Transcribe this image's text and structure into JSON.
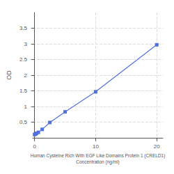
{
  "chart_data": {
    "type": "line",
    "x": [
      0,
      0.156,
      0.313,
      0.625,
      1.25,
      2.5,
      5,
      10,
      20
    ],
    "values": [
      0.105,
      0.118,
      0.143,
      0.175,
      0.27,
      0.49,
      0.83,
      1.47,
      2.97
    ],
    "xlabel": "Human Cysteine Rich With EGF Like Domains Protein 1 (CRELD1)\nConcentration (ng/ml)",
    "ylabel": "OD",
    "xlim": [
      -0.3,
      21
    ],
    "xticks": [
      0,
      10,
      20
    ],
    "ylim": [
      0,
      4
    ],
    "yticks": [
      0.5,
      1,
      1.5,
      2,
      2.5,
      3,
      3.5
    ],
    "marker": "square",
    "grid": true
  }
}
